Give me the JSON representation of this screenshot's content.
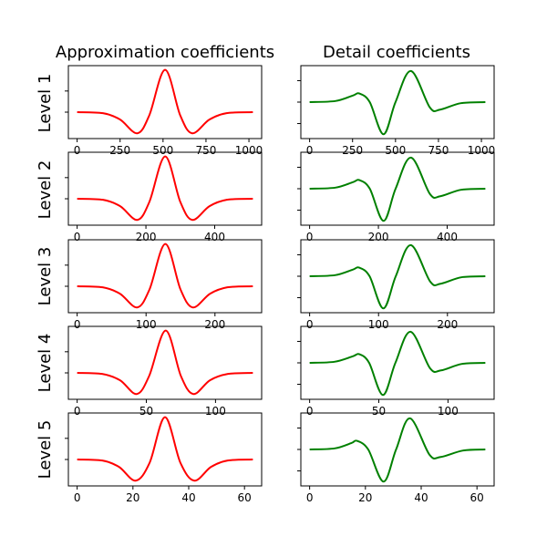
{
  "figure": {
    "col_titles": [
      "Approximation coefficients",
      "Detail coefficients"
    ],
    "row_labels": [
      "Level 1",
      "Level 2",
      "Level 3",
      "Level 4",
      "Level 5"
    ]
  },
  "colors": {
    "approx": "#ff0000",
    "detail": "#008000",
    "axis": "#000000"
  },
  "chart_data": [
    {
      "type": "line",
      "title": "Approximation coefficients",
      "ylabel": "Level 1",
      "series": [
        {
          "color": "#ff0000",
          "points": [
            [
              0,
              0.0
            ],
            [
              150,
              -0.05
            ],
            [
              250,
              -0.35
            ],
            [
              350,
              -1.0
            ],
            [
              420,
              -0.15
            ],
            [
              512,
              2.0
            ],
            [
              600,
              -0.15
            ],
            [
              670,
              -1.0
            ],
            [
              770,
              -0.35
            ],
            [
              870,
              -0.05
            ],
            [
              1023,
              0.0
            ]
          ]
        }
      ],
      "xlim": [
        -51,
        1074
      ],
      "xticks": [
        0,
        250,
        500,
        750,
        1000
      ],
      "ylim": [
        -1.25,
        2.2
      ]
    },
    {
      "type": "line",
      "title": "Detail coefficients",
      "ylabel": "",
      "series": [
        {
          "color": "#008000",
          "points": [
            [
              0,
              0.0
            ],
            [
              150,
              0.05
            ],
            [
              250,
              0.3
            ],
            [
              290,
              0.4
            ],
            [
              350,
              0.0
            ],
            [
              430,
              -1.5
            ],
            [
              500,
              0.0
            ],
            [
              590,
              1.45
            ],
            [
              700,
              -0.25
            ],
            [
              760,
              -0.35
            ],
            [
              880,
              -0.05
            ],
            [
              1023,
              0.0
            ]
          ]
        }
      ],
      "xlim": [
        -51,
        1074
      ],
      "xticks": [
        0,
        250,
        500,
        750,
        1000
      ],
      "ylim": [
        -1.7,
        1.7
      ]
    },
    {
      "type": "line",
      "ylabel": "Level 2",
      "series": [
        {
          "color": "#ff0000",
          "points": [
            [
              0,
              0.0
            ],
            [
              75,
              -0.05
            ],
            [
              125,
              -0.35
            ],
            [
              175,
              -1.0
            ],
            [
              210,
              -0.15
            ],
            [
              256,
              2.0
            ],
            [
              300,
              -0.15
            ],
            [
              335,
              -1.0
            ],
            [
              385,
              -0.35
            ],
            [
              435,
              -0.05
            ],
            [
              511,
              0.0
            ]
          ]
        }
      ],
      "xlim": [
        -25.5,
        536.5
      ],
      "xticks": [
        0,
        200,
        400
      ],
      "ylim": [
        -1.25,
        2.2
      ]
    },
    {
      "type": "line",
      "series": [
        {
          "color": "#008000",
          "points": [
            [
              0,
              0.0
            ],
            [
              75,
              0.05
            ],
            [
              125,
              0.3
            ],
            [
              145,
              0.4
            ],
            [
              175,
              0.0
            ],
            [
              215,
              -1.5
            ],
            [
              250,
              0.0
            ],
            [
              295,
              1.45
            ],
            [
              350,
              -0.25
            ],
            [
              380,
              -0.35
            ],
            [
              440,
              -0.05
            ],
            [
              511,
              0.0
            ]
          ]
        }
      ],
      "xlim": [
        -25.5,
        536.5
      ],
      "xticks": [
        0,
        200,
        400
      ],
      "ylim": [
        -1.7,
        1.7
      ]
    },
    {
      "type": "line",
      "ylabel": "Level 3",
      "series": [
        {
          "color": "#ff0000",
          "points": [
            [
              0,
              0.0
            ],
            [
              37,
              -0.05
            ],
            [
              62,
              -0.35
            ],
            [
              87,
              -1.0
            ],
            [
              105,
              -0.15
            ],
            [
              128,
              2.0
            ],
            [
              150,
              -0.15
            ],
            [
              168,
              -1.0
            ],
            [
              193,
              -0.35
            ],
            [
              218,
              -0.05
            ],
            [
              255,
              0.0
            ]
          ]
        }
      ],
      "xlim": [
        -12.75,
        267.75
      ],
      "xticks": [
        0,
        100,
        200
      ],
      "ylim": [
        -1.25,
        2.2
      ]
    },
    {
      "type": "line",
      "series": [
        {
          "color": "#008000",
          "points": [
            [
              0,
              0.0
            ],
            [
              37,
              0.05
            ],
            [
              62,
              0.3
            ],
            [
              72,
              0.4
            ],
            [
              87,
              0.0
            ],
            [
              107,
              -1.5
            ],
            [
              125,
              0.0
            ],
            [
              147,
              1.45
            ],
            [
              175,
              -0.25
            ],
            [
              190,
              -0.35
            ],
            [
              220,
              -0.05
            ],
            [
              255,
              0.0
            ]
          ]
        }
      ],
      "xlim": [
        -12.75,
        267.75
      ],
      "xticks": [
        0,
        100,
        200
      ],
      "ylim": [
        -1.7,
        1.7
      ]
    },
    {
      "type": "line",
      "ylabel": "Level 4",
      "series": [
        {
          "color": "#ff0000",
          "points": [
            [
              0,
              0.0
            ],
            [
              18,
              -0.05
            ],
            [
              31,
              -0.35
            ],
            [
              43,
              -1.0
            ],
            [
              52,
              -0.15
            ],
            [
              64,
              2.0
            ],
            [
              75,
              -0.15
            ],
            [
              84,
              -1.0
            ],
            [
              96,
              -0.35
            ],
            [
              109,
              -0.05
            ],
            [
              127,
              0.0
            ]
          ]
        }
      ],
      "xlim": [
        -6.35,
        133.35
      ],
      "xticks": [
        0,
        50,
        100
      ],
      "ylim": [
        -1.25,
        2.2
      ]
    },
    {
      "type": "line",
      "series": [
        {
          "color": "#008000",
          "points": [
            [
              0,
              0.0
            ],
            [
              18,
              0.05
            ],
            [
              31,
              0.3
            ],
            [
              36,
              0.4
            ],
            [
              43,
              0.0
            ],
            [
              53,
              -1.5
            ],
            [
              62,
              0.0
            ],
            [
              73,
              1.45
            ],
            [
              87,
              -0.25
            ],
            [
              95,
              -0.35
            ],
            [
              110,
              -0.05
            ],
            [
              127,
              0.0
            ]
          ]
        }
      ],
      "xlim": [
        -6.35,
        133.35
      ],
      "xticks": [
        0,
        50,
        100
      ],
      "ylim": [
        -1.7,
        1.7
      ]
    },
    {
      "type": "line",
      "ylabel": "Level 5",
      "series": [
        {
          "color": "#ff0000",
          "points": [
            [
              0,
              0.0
            ],
            [
              9,
              -0.05
            ],
            [
              15,
              -0.35
            ],
            [
              21,
              -1.0
            ],
            [
              26,
              -0.15
            ],
            [
              31.5,
              2.0
            ],
            [
              37,
              -0.15
            ],
            [
              42,
              -1.0
            ],
            [
              48,
              -0.35
            ],
            [
              54,
              -0.05
            ],
            [
              63,
              0.0
            ]
          ]
        }
      ],
      "xlim": [
        -3.15,
        66.15
      ],
      "xticks": [
        0,
        20,
        40,
        60
      ],
      "ylim": [
        -1.25,
        2.2
      ]
    },
    {
      "type": "line",
      "series": [
        {
          "color": "#008000",
          "points": [
            [
              0,
              0.0
            ],
            [
              9,
              0.05
            ],
            [
              15,
              0.3
            ],
            [
              17,
              0.4
            ],
            [
              21,
              0.0
            ],
            [
              26.5,
              -1.5
            ],
            [
              31,
              0.0
            ],
            [
              36,
              1.45
            ],
            [
              43,
              -0.25
            ],
            [
              47,
              -0.35
            ],
            [
              55,
              -0.05
            ],
            [
              63,
              0.0
            ]
          ]
        }
      ],
      "xlim": [
        -3.15,
        66.15
      ],
      "xticks": [
        0,
        20,
        40,
        60
      ],
      "ylim": [
        -1.7,
        1.7
      ]
    }
  ]
}
